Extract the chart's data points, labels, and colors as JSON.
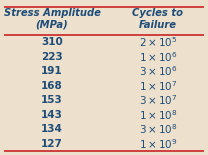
{
  "header1": "Stress Amplitude\n(MPa)",
  "header2": "Cycles to\nFailure",
  "col1": [
    "310",
    "223",
    "191",
    "168",
    "153",
    "143",
    "134",
    "127"
  ],
  "col2_mantissa": [
    2,
    1,
    3,
    1,
    3,
    1,
    3,
    1
  ],
  "col2_exponent": [
    5,
    6,
    6,
    7,
    7,
    8,
    8,
    9
  ],
  "background_color": "#ede0cc",
  "header_color": "#1e4d7a",
  "data_color": "#1e4d7a",
  "line_color": "#cc3333",
  "header_fontsize": 7.2,
  "data_fontsize": 7.5,
  "fig_width": 2.08,
  "fig_height": 1.55,
  "dpi": 100
}
